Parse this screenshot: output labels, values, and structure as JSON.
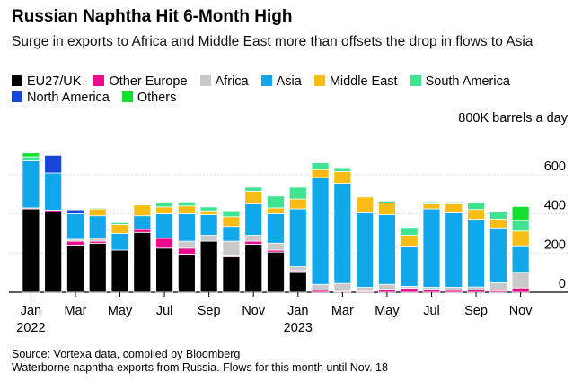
{
  "title": "Russian Naphtha Hit 6-Month High",
  "subtitle": "Surge in exports to Africa and Middle East more than offsets the drop in flows to Asia",
  "unit_label": "800K barrels a day",
  "source_line1": "Source: Vortexa data, compiled by Bloomberg",
  "source_line2": "Waterborne naphtha exports from Russia. Flows for this month until Nov. 18",
  "chart_data": {
    "type": "bar",
    "stacked": true,
    "title": "Russian Naphtha Hit 6-Month High",
    "ylabel": "800K barrels a day",
    "ylim": [
      0,
      800
    ],
    "yticks": [
      0,
      200,
      400,
      600
    ],
    "xtick_labels": [
      {
        "index": 0,
        "label": "Jan",
        "sub": "2022"
      },
      {
        "index": 2,
        "label": "Mar",
        "sub": ""
      },
      {
        "index": 4,
        "label": "May",
        "sub": ""
      },
      {
        "index": 6,
        "label": "Jul",
        "sub": ""
      },
      {
        "index": 8,
        "label": "Sep",
        "sub": ""
      },
      {
        "index": 10,
        "label": "Nov",
        "sub": ""
      },
      {
        "index": 12,
        "label": "Jan",
        "sub": "2023"
      },
      {
        "index": 14,
        "label": "Mar",
        "sub": ""
      },
      {
        "index": 16,
        "label": "May",
        "sub": ""
      },
      {
        "index": 18,
        "label": "Jul",
        "sub": ""
      },
      {
        "index": 20,
        "label": "Sep",
        "sub": ""
      },
      {
        "index": 22,
        "label": "Nov",
        "sub": ""
      }
    ],
    "categories": [
      "Jan 2022",
      "Feb 2022",
      "Mar 2022",
      "Apr 2022",
      "May 2022",
      "Jun 2022",
      "Jul 2022",
      "Aug 2022",
      "Sep 2022",
      "Oct 2022",
      "Nov 2022",
      "Dec 2022",
      "Jan 2023",
      "Feb 2023",
      "Mar 2023",
      "Apr 2023",
      "May 2023",
      "Jun 2023",
      "Jul 2023",
      "Aug 2023",
      "Sep 2023",
      "Oct 2023",
      "Nov 2023"
    ],
    "series": [
      {
        "name": "EU27/UK",
        "color": "#000000",
        "values": [
          425,
          410,
          240,
          250,
          215,
          305,
          225,
          195,
          260,
          180,
          245,
          205,
          105,
          0,
          0,
          0,
          0,
          0,
          0,
          0,
          0,
          0,
          0
        ]
      },
      {
        "name": "Other Europe",
        "color": "#ec0b8d",
        "values": [
          5,
          8,
          20,
          10,
          0,
          15,
          50,
          30,
          0,
          5,
          15,
          10,
          5,
          10,
          5,
          5,
          15,
          20,
          15,
          10,
          12,
          8,
          22
        ]
      },
      {
        "name": "Africa",
        "color": "#c9c9c9",
        "values": [
          0,
          0,
          10,
          15,
          0,
          0,
          0,
          35,
          30,
          75,
          30,
          35,
          20,
          30,
          40,
          20,
          25,
          10,
          10,
          15,
          15,
          40,
          80
        ]
      },
      {
        "name": "Asia",
        "color": "#10a8ea",
        "values": [
          240,
          190,
          130,
          115,
          85,
          70,
          125,
          140,
          105,
          75,
          160,
          150,
          295,
          545,
          510,
          380,
          355,
          205,
          400,
          380,
          345,
          280,
          135
        ]
      },
      {
        "name": "Middle East",
        "color": "#f9bc12",
        "values": [
          0,
          0,
          0,
          35,
          45,
          55,
          35,
          40,
          20,
          50,
          65,
          30,
          50,
          40,
          60,
          80,
          60,
          55,
          25,
          45,
          50,
          45,
          75
        ]
      },
      {
        "name": "South America",
        "color": "#3ee48f",
        "values": [
          20,
          0,
          0,
          5,
          10,
          0,
          20,
          20,
          20,
          30,
          20,
          60,
          60,
          35,
          20,
          0,
          10,
          40,
          10,
          10,
          35,
          40,
          55
        ]
      },
      {
        "name": "North America",
        "color": "#1647d9",
        "values": [
          0,
          90,
          20,
          0,
          0,
          0,
          0,
          0,
          0,
          0,
          0,
          0,
          0,
          0,
          0,
          0,
          0,
          0,
          0,
          0,
          0,
          0,
          0
        ]
      },
      {
        "name": "Others",
        "color": "#12e130",
        "values": [
          20,
          0,
          0,
          0,
          0,
          0,
          0,
          0,
          0,
          0,
          0,
          0,
          0,
          0,
          0,
          0,
          0,
          0,
          0,
          0,
          0,
          0,
          70
        ]
      }
    ]
  }
}
